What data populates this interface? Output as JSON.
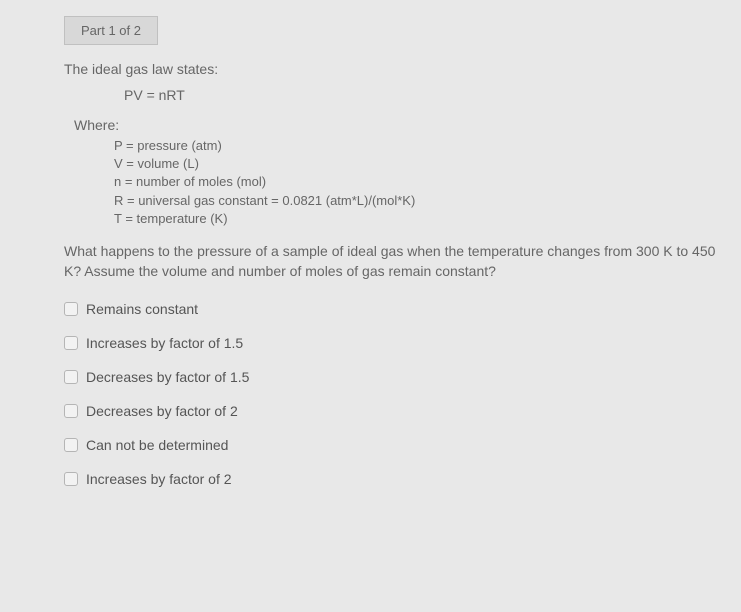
{
  "part_tab": "Part 1 of 2",
  "intro": "The ideal gas law states:",
  "equation": "PV = nRT",
  "where_label": "Where:",
  "defs": {
    "p": "P = pressure (atm)",
    "v": "V = volume (L)",
    "n": "n = number of moles (mol)",
    "r": "R = universal gas constant = 0.0821 (atm*L)/(mol*K)",
    "t": "T = temperature (K)"
  },
  "question": "What happens to the pressure of a sample of ideal gas when the temperature changes from 300 K to 450 K?  Assume the volume and number of moles of gas remain constant?",
  "options": {
    "a": "Remains constant",
    "b": "Increases by factor of 1.5",
    "c": "Decreases by factor of 1.5",
    "d": "Decreases by factor of 2",
    "e": "Can not be determined",
    "f": "Increases by factor of 2"
  }
}
